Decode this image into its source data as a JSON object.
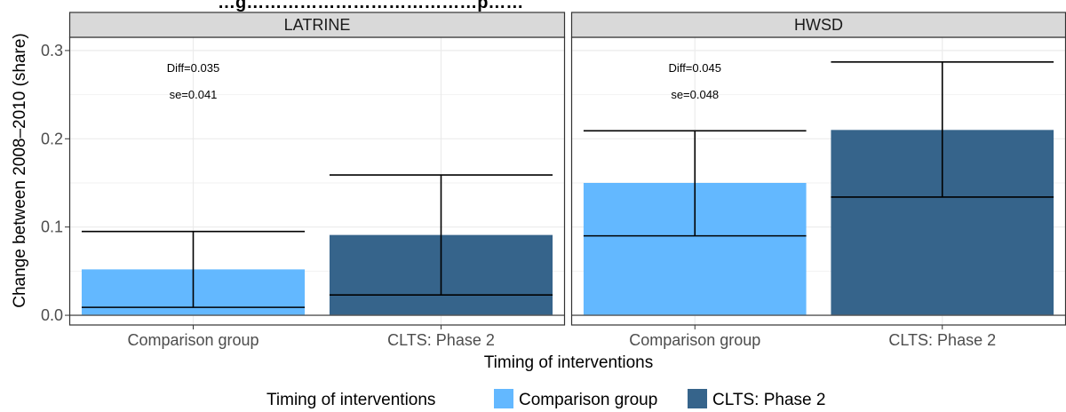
{
  "chart_data": {
    "type": "bar",
    "title": "…g…………………………………p……",
    "xlabel": "Timing of interventions",
    "ylabel": "Change between 2008–2010 (share)",
    "ylim": [
      -0.011,
      0.315
    ],
    "yticks": [
      0.0,
      0.1,
      0.2,
      0.3
    ],
    "ytick_labels": [
      "0.0",
      "0.1",
      "0.2",
      "0.3"
    ],
    "categories": [
      "Comparison group",
      "CLTS: Phase 2"
    ],
    "grid": true,
    "legend": {
      "title": "Timing of interventions",
      "position": "bottom",
      "entries": [
        "Comparison group",
        "CLTS: Phase 2"
      ]
    },
    "colors": {
      "Comparison group": "#63b8ff",
      "CLTS: Phase 2": "#36648b"
    },
    "panels": [
      {
        "label": "LATRINE",
        "values": [
          0.052,
          0.091
        ],
        "error_low": [
          0.009,
          0.023
        ],
        "error_high": [
          0.095,
          0.159
        ],
        "annotations": [
          "Diff=0.035",
          "se=0.041"
        ]
      },
      {
        "label": "HWSD",
        "values": [
          0.15,
          0.21
        ],
        "error_low": [
          0.09,
          0.134
        ],
        "error_high": [
          0.209,
          0.287
        ],
        "annotations": [
          "Diff=0.045",
          "se=0.048"
        ]
      }
    ]
  }
}
